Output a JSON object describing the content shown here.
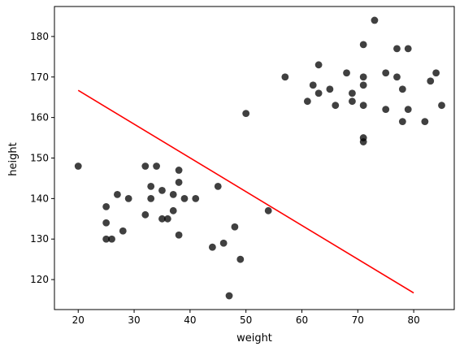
{
  "chart_data": {
    "type": "scatter",
    "xlabel": "weight",
    "ylabel": "height",
    "xlim": [
      15.75,
      87.25
    ],
    "ylim": [
      112.6,
      187.4
    ],
    "xticks": [
      20,
      30,
      40,
      50,
      60,
      70,
      80
    ],
    "yticks": [
      120,
      130,
      140,
      150,
      160,
      170,
      180
    ],
    "grid": false,
    "point_color": "#000000",
    "point_opacity": 0.75,
    "line_color": "#ff0000",
    "points": [
      [
        20,
        148
      ],
      [
        25,
        138
      ],
      [
        25,
        134
      ],
      [
        25,
        130
      ],
      [
        26,
        130
      ],
      [
        27,
        141
      ],
      [
        28,
        132
      ],
      [
        29,
        140
      ],
      [
        32,
        148
      ],
      [
        32,
        136
      ],
      [
        33,
        143
      ],
      [
        33,
        140
      ],
      [
        34,
        148
      ],
      [
        35,
        142
      ],
      [
        35,
        135
      ],
      [
        36,
        135
      ],
      [
        37,
        141
      ],
      [
        37,
        137
      ],
      [
        38,
        147
      ],
      [
        38,
        144
      ],
      [
        38,
        131
      ],
      [
        39,
        140
      ],
      [
        41,
        140
      ],
      [
        44,
        128
      ],
      [
        45,
        143
      ],
      [
        46,
        129
      ],
      [
        47,
        116
      ],
      [
        48,
        133
      ],
      [
        49,
        125
      ],
      [
        50,
        161
      ],
      [
        54,
        137
      ],
      [
        57,
        170
      ],
      [
        61,
        164
      ],
      [
        62,
        168
      ],
      [
        63,
        173
      ],
      [
        63,
        166
      ],
      [
        65,
        167
      ],
      [
        66,
        163
      ],
      [
        68,
        171
      ],
      [
        69,
        166
      ],
      [
        69,
        164
      ],
      [
        71,
        178
      ],
      [
        71,
        170
      ],
      [
        71,
        168
      ],
      [
        71,
        163
      ],
      [
        71,
        155
      ],
      [
        71,
        154
      ],
      [
        73,
        184
      ],
      [
        75,
        171
      ],
      [
        75,
        162
      ],
      [
        77,
        177
      ],
      [
        77,
        170
      ],
      [
        78,
        167
      ],
      [
        78,
        159
      ],
      [
        79,
        177
      ],
      [
        79,
        162
      ],
      [
        82,
        159
      ],
      [
        83,
        169
      ],
      [
        84,
        171
      ],
      [
        85,
        163
      ]
    ],
    "line": {
      "x": [
        20,
        80
      ],
      "y": [
        166.7,
        116.7
      ]
    }
  }
}
